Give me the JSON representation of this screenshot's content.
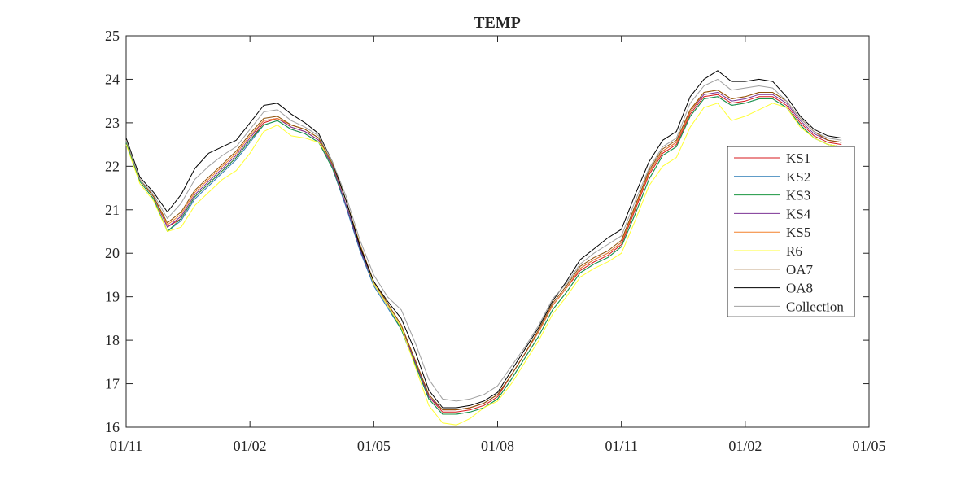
{
  "chart_data": {
    "type": "line",
    "title": "TEMP",
    "xlabel": "",
    "ylabel": "",
    "x_ticks": [
      "01/11",
      "01/02",
      "01/05",
      "01/08",
      "01/11",
      "01/02",
      "01/05"
    ],
    "xlim": [
      0,
      540
    ],
    "ylim": [
      16,
      25
    ],
    "y_ticks": [
      16,
      17,
      18,
      19,
      20,
      21,
      22,
      23,
      24,
      25
    ],
    "grid": false,
    "legend_position": "right",
    "x": [
      0,
      10,
      20,
      30,
      40,
      50,
      60,
      70,
      80,
      90,
      100,
      110,
      120,
      130,
      140,
      150,
      160,
      170,
      180,
      190,
      200,
      210,
      220,
      230,
      240,
      250,
      260,
      270,
      280,
      290,
      300,
      310,
      320,
      330,
      340,
      350,
      360,
      370,
      380,
      390,
      400,
      410,
      420,
      430,
      440,
      450,
      460,
      470,
      480,
      490,
      500,
      510,
      520
    ],
    "series": [
      {
        "name": "KS1",
        "color": "#d7191c",
        "values": [
          22.6,
          21.7,
          21.3,
          20.6,
          20.8,
          21.3,
          21.6,
          21.9,
          22.2,
          22.6,
          23.0,
          23.1,
          22.9,
          22.8,
          22.6,
          22.0,
          21.1,
          20.1,
          19.3,
          18.8,
          18.3,
          17.5,
          16.7,
          16.35,
          16.35,
          16.4,
          16.5,
          16.7,
          17.2,
          17.7,
          18.2,
          18.8,
          19.2,
          19.6,
          19.8,
          19.95,
          20.2,
          21.0,
          21.8,
          22.3,
          22.5,
          23.2,
          23.6,
          23.65,
          23.45,
          23.5,
          23.6,
          23.6,
          23.4,
          23.0,
          22.7,
          22.55,
          22.5
        ]
      },
      {
        "name": "KS2",
        "color": "#2c7bb6",
        "values": [
          22.55,
          21.65,
          21.25,
          20.5,
          20.75,
          21.25,
          21.55,
          21.85,
          22.15,
          22.55,
          22.95,
          23.05,
          22.85,
          22.75,
          22.55,
          21.95,
          21.05,
          20.05,
          19.25,
          18.75,
          18.25,
          17.45,
          16.65,
          16.3,
          16.3,
          16.35,
          16.45,
          16.65,
          17.1,
          17.6,
          18.1,
          18.7,
          19.1,
          19.55,
          19.75,
          19.9,
          20.15,
          20.9,
          21.7,
          22.25,
          22.45,
          23.15,
          23.55,
          23.6,
          23.4,
          23.45,
          23.55,
          23.55,
          23.35,
          22.95,
          22.65,
          22.5,
          22.45
        ]
      },
      {
        "name": "KS3",
        "color": "#1a9641",
        "values": [
          22.55,
          21.65,
          21.25,
          20.5,
          20.8,
          21.3,
          21.6,
          21.9,
          22.2,
          22.6,
          22.95,
          23.05,
          22.85,
          22.75,
          22.55,
          21.95,
          21.1,
          20.1,
          19.3,
          18.8,
          18.25,
          17.45,
          16.65,
          16.3,
          16.3,
          16.35,
          16.45,
          16.65,
          17.1,
          17.6,
          18.1,
          18.7,
          19.1,
          19.55,
          19.75,
          19.9,
          20.15,
          20.9,
          21.7,
          22.25,
          22.45,
          23.15,
          23.55,
          23.6,
          23.4,
          23.45,
          23.55,
          23.55,
          23.35,
          22.95,
          22.65,
          22.5,
          22.45
        ]
      },
      {
        "name": "KS4",
        "color": "#7b3294",
        "values": [
          22.6,
          21.7,
          21.3,
          20.6,
          20.85,
          21.35,
          21.65,
          21.95,
          22.25,
          22.65,
          23.05,
          23.1,
          22.9,
          22.8,
          22.6,
          22.0,
          21.1,
          20.1,
          19.3,
          18.8,
          18.3,
          17.5,
          16.7,
          16.4,
          16.4,
          16.45,
          16.55,
          16.75,
          17.2,
          17.7,
          18.2,
          18.8,
          19.2,
          19.65,
          19.85,
          20.0,
          20.25,
          21.05,
          21.85,
          22.35,
          22.55,
          23.25,
          23.65,
          23.7,
          23.5,
          23.55,
          23.65,
          23.65,
          23.45,
          23.05,
          22.75,
          22.6,
          22.55
        ]
      },
      {
        "name": "KS5",
        "color": "#f4802a",
        "values": [
          22.6,
          21.7,
          21.3,
          20.65,
          20.9,
          21.4,
          21.7,
          22.0,
          22.3,
          22.7,
          23.05,
          23.1,
          22.95,
          22.85,
          22.65,
          22.05,
          21.2,
          20.2,
          19.35,
          18.85,
          18.35,
          17.55,
          16.75,
          16.4,
          16.4,
          16.45,
          16.55,
          16.75,
          17.2,
          17.7,
          18.2,
          18.8,
          19.2,
          19.65,
          19.85,
          20.0,
          20.25,
          21.05,
          21.85,
          22.35,
          22.55,
          23.25,
          23.7,
          23.75,
          23.55,
          23.6,
          23.7,
          23.7,
          23.5,
          23.1,
          22.8,
          22.6,
          22.55
        ]
      },
      {
        "name": "R6",
        "color": "#ffff33",
        "values": [
          22.5,
          21.6,
          21.2,
          20.5,
          20.6,
          21.1,
          21.4,
          21.7,
          21.9,
          22.3,
          22.8,
          22.95,
          22.7,
          22.65,
          22.55,
          22.1,
          21.2,
          20.2,
          19.3,
          18.8,
          18.3,
          17.4,
          16.5,
          16.1,
          16.05,
          16.2,
          16.45,
          16.6,
          17.0,
          17.5,
          18.0,
          18.6,
          19.0,
          19.45,
          19.65,
          19.8,
          20.0,
          20.75,
          21.55,
          22.0,
          22.2,
          22.9,
          23.35,
          23.45,
          23.05,
          23.15,
          23.3,
          23.45,
          23.35,
          22.9,
          22.65,
          22.5,
          22.45
        ]
      },
      {
        "name": "OA7",
        "color": "#8c510a",
        "values": [
          22.6,
          21.7,
          21.3,
          20.7,
          20.95,
          21.45,
          21.75,
          22.05,
          22.35,
          22.75,
          23.1,
          23.15,
          22.95,
          22.85,
          22.65,
          22.05,
          21.2,
          20.2,
          19.35,
          18.85,
          18.35,
          17.55,
          16.75,
          16.4,
          16.4,
          16.45,
          16.55,
          16.75,
          17.2,
          17.7,
          18.25,
          18.85,
          19.25,
          19.7,
          19.9,
          20.05,
          20.3,
          21.1,
          21.9,
          22.4,
          22.6,
          23.3,
          23.7,
          23.75,
          23.55,
          23.6,
          23.7,
          23.7,
          23.5,
          23.1,
          22.8,
          22.6,
          22.55
        ]
      },
      {
        "name": "OA8",
        "color": "#000000",
        "values": [
          22.65,
          21.75,
          21.4,
          20.95,
          21.35,
          21.95,
          22.3,
          22.45,
          22.6,
          23.0,
          23.4,
          23.45,
          23.2,
          23.0,
          22.75,
          22.1,
          21.2,
          20.15,
          19.35,
          18.9,
          18.5,
          17.75,
          16.85,
          16.45,
          16.45,
          16.5,
          16.6,
          16.8,
          17.3,
          17.8,
          18.3,
          18.9,
          19.35,
          19.85,
          20.1,
          20.35,
          20.55,
          21.35,
          22.1,
          22.6,
          22.8,
          23.6,
          24.0,
          24.2,
          23.95,
          23.95,
          24.0,
          23.95,
          23.6,
          23.15,
          22.85,
          22.7,
          22.65
        ]
      },
      {
        "name": "Collection",
        "color": "#a0a0a0",
        "values": [
          22.6,
          21.7,
          21.35,
          20.8,
          21.15,
          21.7,
          22.0,
          22.25,
          22.45,
          22.85,
          23.25,
          23.3,
          23.05,
          22.9,
          22.7,
          22.1,
          21.3,
          20.3,
          19.5,
          19.0,
          18.7,
          17.95,
          17.1,
          16.65,
          16.6,
          16.65,
          16.75,
          16.95,
          17.4,
          17.85,
          18.35,
          18.95,
          19.3,
          19.75,
          20.0,
          20.2,
          20.4,
          21.2,
          21.95,
          22.45,
          22.65,
          23.45,
          23.85,
          24.0,
          23.75,
          23.8,
          23.85,
          23.8,
          23.5,
          23.1,
          22.8,
          22.65,
          22.6
        ]
      }
    ]
  }
}
